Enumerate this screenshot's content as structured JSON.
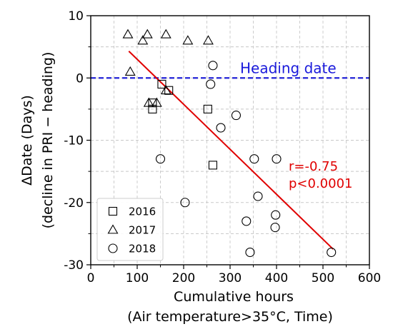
{
  "chart_data": {
    "type": "scatter",
    "xlabel": "Cumulative hours",
    "xlabel2": "(Air temperature>35°C, Time)",
    "ylabel": "ΔDate (Days)",
    "ylabel2": "(decline in PRI − heading)",
    "xlim": [
      0,
      600
    ],
    "ylim": [
      -30,
      10
    ],
    "xticks": [
      0,
      100,
      200,
      300,
      400,
      500,
      600
    ],
    "yticks": [
      -30,
      -20,
      -10,
      0,
      10
    ],
    "grid": true,
    "legend_position": "bottom-left",
    "series": [
      {
        "name": "2016",
        "marker": "square",
        "points": [
          [
            133,
            -4
          ],
          [
            133,
            -5
          ],
          [
            153,
            -1
          ],
          [
            168,
            -2
          ],
          [
            252,
            -5
          ],
          [
            263,
            -14
          ]
        ]
      },
      {
        "name": "2017",
        "marker": "triangle",
        "points": [
          [
            80,
            7
          ],
          [
            112,
            6
          ],
          [
            122,
            7
          ],
          [
            162,
            7
          ],
          [
            209,
            6
          ],
          [
            253,
            6
          ],
          [
            85,
            1
          ],
          [
            125,
            -4
          ],
          [
            142,
            -4
          ],
          [
            162,
            -2
          ]
        ]
      },
      {
        "name": "2018",
        "marker": "circle",
        "points": [
          [
            263,
            2
          ],
          [
            258,
            -1
          ],
          [
            313,
            -6
          ],
          [
            280,
            -8
          ],
          [
            150,
            -13
          ],
          [
            352,
            -13
          ],
          [
            400,
            -13
          ],
          [
            360,
            -19
          ],
          [
            203,
            -20
          ],
          [
            398,
            -22
          ],
          [
            335,
            -23
          ],
          [
            397,
            -24
          ],
          [
            343,
            -28
          ],
          [
            518,
            -28
          ]
        ]
      }
    ],
    "regression_line": {
      "x": [
        82,
        522
      ],
      "y": [
        4.3,
        -27.5
      ],
      "color": "#e00000"
    },
    "reference_line": {
      "y": 0,
      "label": "Heading date",
      "color": "#2323d8"
    },
    "annotations": {
      "r_text": "r=-0.75",
      "p_text": "p<0.0001",
      "color": "#e00000"
    }
  }
}
